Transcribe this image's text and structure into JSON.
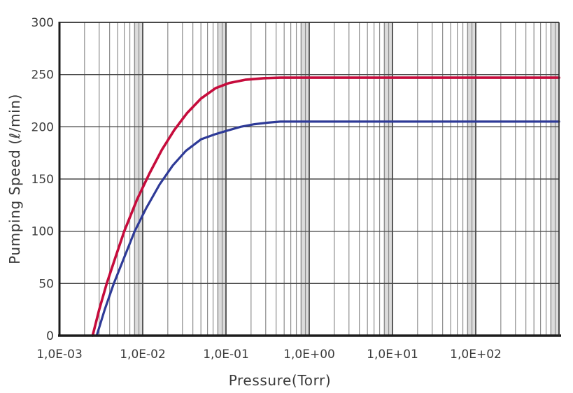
{
  "figure": {
    "background": "#ffffff",
    "frame_color": "#1c1c1c",
    "major_grid_color": "#414141",
    "minor_grid_color": "#8d8d8d",
    "horizontal_grid_color": "#4c4c4c",
    "cluster_band_color": "#c9c9c9"
  },
  "chart_data": {
    "type": "line",
    "title": "",
    "xlabel": "Pressure(Torr)",
    "ylabel": "Pumping Speed (ℓ/min)",
    "x_scale": "log",
    "xlim": [
      0.001,
      1000
    ],
    "ylim": [
      0,
      300
    ],
    "grid": "log minor+major verticals, 50-unit horizontals, no legend",
    "legend": "none",
    "y_ticks": [
      0,
      50,
      100,
      150,
      200,
      250,
      300
    ],
    "x_ticks": [
      {
        "value": 0.001,
        "label": "1,0E-03"
      },
      {
        "value": 0.01,
        "label": "1,0E-02"
      },
      {
        "value": 0.1,
        "label": "1,0E-01"
      },
      {
        "value": 1,
        "label": "1,0E+00"
      },
      {
        "value": 10,
        "label": "1,0E+01"
      },
      {
        "value": 100,
        "label": "1,0E+02"
      }
    ],
    "series": [
      {
        "name": "upper curve (red)",
        "color": "#c60c3c",
        "stroke_width": 3.6,
        "plateau_value": 247,
        "points": [
          [
            0.0025,
            0
          ],
          [
            0.003,
            25
          ],
          [
            0.0037,
            50
          ],
          [
            0.0047,
            75
          ],
          [
            0.006,
            100
          ],
          [
            0.0085,
            130
          ],
          [
            0.012,
            155
          ],
          [
            0.017,
            178
          ],
          [
            0.024,
            197
          ],
          [
            0.034,
            213
          ],
          [
            0.05,
            227
          ],
          [
            0.075,
            237
          ],
          [
            0.11,
            242
          ],
          [
            0.17,
            245
          ],
          [
            0.28,
            246.5
          ],
          [
            0.45,
            247
          ],
          [
            1000,
            247
          ]
        ]
      },
      {
        "name": "lower curve (blue)",
        "color": "#2e3a97",
        "stroke_width": 3.2,
        "plateau_value": 205,
        "points": [
          [
            0.0028,
            0
          ],
          [
            0.0035,
            25
          ],
          [
            0.0045,
            50
          ],
          [
            0.006,
            75
          ],
          [
            0.008,
            100
          ],
          [
            0.011,
            122
          ],
          [
            0.016,
            145
          ],
          [
            0.023,
            163
          ],
          [
            0.033,
            177
          ],
          [
            0.05,
            188
          ],
          [
            0.075,
            193
          ],
          [
            0.1,
            196
          ],
          [
            0.15,
            200
          ],
          [
            0.22,
            202.5
          ],
          [
            0.32,
            204
          ],
          [
            0.45,
            205
          ],
          [
            1000,
            205
          ]
        ]
      }
    ]
  }
}
